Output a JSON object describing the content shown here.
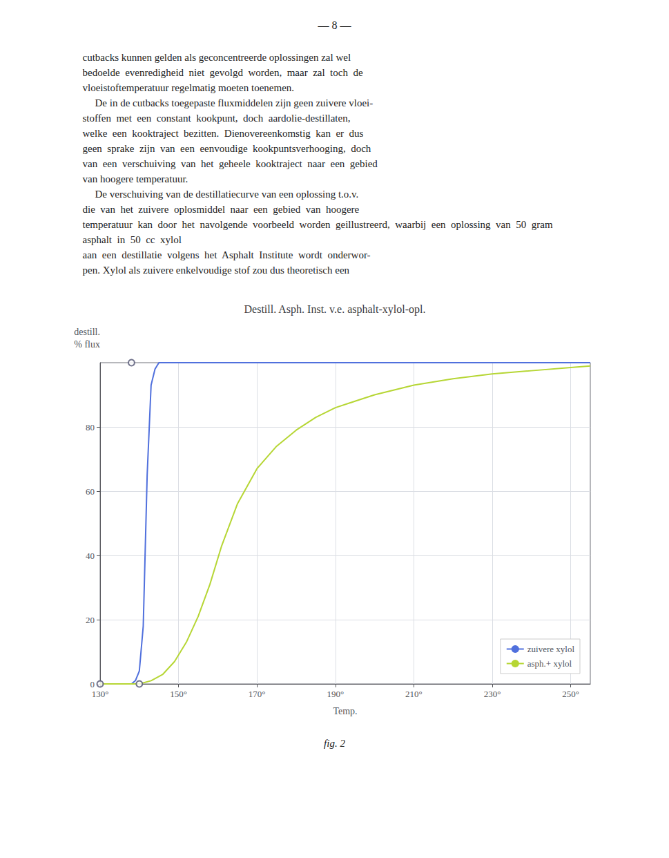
{
  "page_header": "— 8 —",
  "body_text": [
    [
      "cutbacks kunnen gelden als geconcentreerde oplossingen zal wel",
      "bedoelde  evenredigheid  niet  gevolgd  worden,  maar  zal  toch  de",
      "vloeistoftemperatuur regelmatig moeten toenemen."
    ],
    [
      "De in de cutbacks toegepaste fluxmiddelen zijn geen zuivere vloei-",
      "stoffen  met  een  constant  kookpunt,  doch  aardolie-destillaten,",
      "welke  een  kooktraject  bezitten.  Dienovereenkomstig  kan  er  dus",
      "geen  sprake  zijn  van  een  eenvoudige  kookpuntsverhooging,  doch",
      "van  een  verschuiving  van  het  geheele  kooktraject  naar  een  gebied",
      "van hoogere temperatuur."
    ],
    [
      "De verschuiving van de destillatiecurve van een oplossing t.o.v.",
      "die  van  het  zuivere  oplosmiddel  naar  een  gebied  van  hoogere",
      "temperatuur  kan  door  het  navolgende  voorbeeld  worden  geillustreerd,  waarbij  een  oplossing  van  50  gram  asphalt  in  50  cc  xylol",
      "aan  een  destillatie  volgens  het  Asphalt  Institute  wordt  onderwor-",
      "pen. Xylol als zuivere enkelvoudige stof zou dus theoretisch een"
    ]
  ],
  "caption": "fig. 2",
  "chart_data": {
    "type": "line",
    "title": "Destill. Asph. Inst. v.e. asphalt-xylol-opl.",
    "xlabel": "Temp.",
    "ylabel": [
      "destill.",
      "% flux"
    ],
    "series": [
      {
        "name": "zuivere xylol",
        "x": [
          130,
          138,
          139,
          140,
          141,
          142,
          143,
          144,
          145,
          255
        ],
        "values": [
          0,
          0,
          1,
          4,
          18,
          65,
          93,
          98,
          100,
          100
        ]
      },
      {
        "name": "asph.+ xylol",
        "x": [
          130,
          140,
          143,
          146,
          149,
          152,
          155,
          158,
          161,
          165,
          170,
          175,
          180,
          185,
          190,
          195,
          200,
          210,
          220,
          230,
          240,
          250,
          255
        ],
        "values": [
          0,
          0,
          1,
          3,
          7,
          13,
          21,
          31,
          43,
          56,
          67,
          74,
          79,
          83,
          86,
          88,
          90,
          93,
          95,
          96.5,
          97.5,
          98.5,
          99
        ]
      },
      {
        "type": "scatter",
        "marker": "circle_open",
        "x": [
          138,
          130,
          140
        ],
        "values": [
          100,
          0,
          0
        ]
      }
    ],
    "xlim": [
      130,
      255
    ],
    "xticks": [
      {
        "value": 130,
        "label": "130°"
      },
      {
        "value": 150,
        "label": "150°"
      },
      {
        "value": 170,
        "label": "170°"
      },
      {
        "value": 190,
        "label": "190°"
      },
      {
        "value": 210,
        "label": "210°"
      },
      {
        "value": 230,
        "label": "230°"
      },
      {
        "value": 250,
        "label": "250°"
      }
    ],
    "ylim": [
      0,
      100
    ],
    "yticks": [
      0,
      20,
      40,
      60,
      80
    ],
    "grid": true,
    "legend": "bottom-right"
  }
}
